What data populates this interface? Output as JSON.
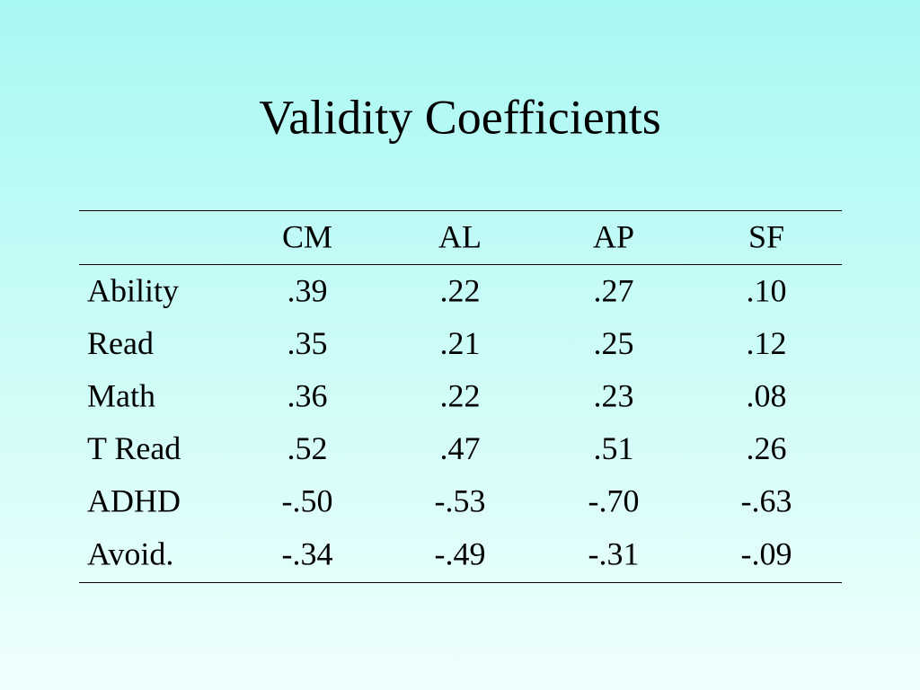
{
  "title": "Validity Coefficients",
  "table": {
    "header": [
      "CM",
      "AL",
      "AP",
      "SF"
    ],
    "rows": [
      [
        "Ability",
        ".39",
        ".22",
        ".27",
        ".10"
      ],
      [
        "Read",
        ".35",
        ".21",
        ".25",
        ".12"
      ],
      [
        "Math",
        ".36",
        ".22",
        ".23",
        ".08"
      ],
      [
        "T Read",
        ".52",
        ".47",
        ".51",
        ".26"
      ],
      [
        "ADHD",
        "-.50",
        "-.53",
        "-.70",
        "-.63"
      ],
      [
        "Avoid.",
        "-.34",
        "-.49",
        "-.31",
        "-.09"
      ]
    ]
  }
}
